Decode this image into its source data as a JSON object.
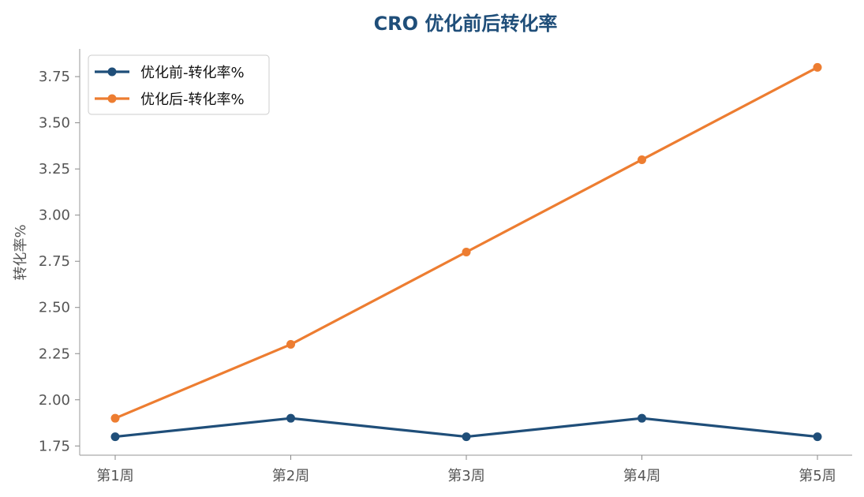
{
  "chart_data": {
    "type": "line",
    "title": "CRO 优化前后转化率",
    "xlabel": "",
    "ylabel": "转化率%",
    "categories": [
      "第1周",
      "第2周",
      "第3周",
      "第4周",
      "第5周"
    ],
    "ylim": [
      1.7,
      3.9
    ],
    "yticks": [
      "1.75",
      "2.00",
      "2.25",
      "2.50",
      "2.75",
      "3.00",
      "3.25",
      "3.50",
      "3.75"
    ],
    "grid": false,
    "legend_position": "top-left",
    "series": [
      {
        "name": "优化前-转化率%",
        "color": "#1f4e79",
        "values": [
          1.8,
          1.9,
          1.8,
          1.9,
          1.8
        ]
      },
      {
        "name": "优化后-转化率%",
        "color": "#ed7d31",
        "values": [
          1.9,
          2.3,
          2.8,
          3.3,
          3.8
        ]
      }
    ]
  }
}
